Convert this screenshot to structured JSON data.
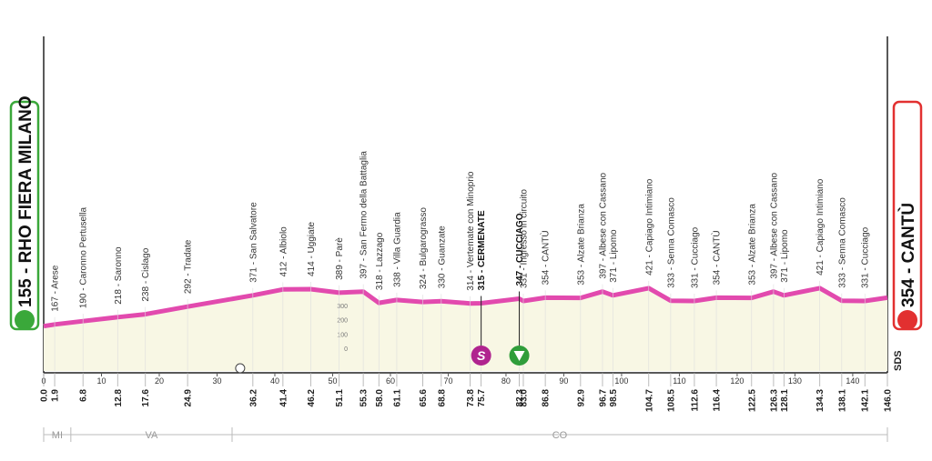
{
  "chart_data": {
    "type": "area",
    "color": "#e24aae",
    "start": {
      "label": "155 - RHO FIERA MILANO",
      "altitude": 155,
      "km": 0,
      "km_label": "0.0"
    },
    "finish": {
      "label": "354 - CANTÙ",
      "altitude": 354,
      "km": 146,
      "km_label": "146.0"
    },
    "places": [
      {
        "label": "167 - Arese",
        "altitude": 167,
        "km": 1.9,
        "km_label": "1.9"
      },
      {
        "label": "190 - Caronno Pertusella",
        "altitude": 190,
        "km": 6.8,
        "km_label": "6.8"
      },
      {
        "label": "218 - Saronno",
        "altitude": 218,
        "km": 12.8,
        "km_label": "12.8"
      },
      {
        "label": "238 - Cislago",
        "altitude": 238,
        "km": 17.6,
        "km_label": "17.6"
      },
      {
        "label": "292 - Tradate",
        "altitude": 292,
        "km": 24.9,
        "km_label": "24.9"
      },
      {
        "label": "371 - San Salvatore",
        "altitude": 371,
        "km": 36.2,
        "km_label": "36.2"
      },
      {
        "label": "412 - Albiolo",
        "altitude": 412,
        "km": 41.4,
        "km_label": "41.4"
      },
      {
        "label": "414 - Uggiate",
        "altitude": 414,
        "km": 46.2,
        "km_label": "46.2"
      },
      {
        "label": "389 - Parè",
        "altitude": 389,
        "km": 51.1,
        "km_label": "51.1"
      },
      {
        "label": "397 - San Fermo della Battaglia",
        "altitude": 397,
        "km": 55.3,
        "km_label": "55.3"
      },
      {
        "label": "318 - Lazzago",
        "altitude": 318,
        "km": 58,
        "km_label": "58.0"
      },
      {
        "label": "338 - Villa Guardia",
        "altitude": 338,
        "km": 61.1,
        "km_label": "61.1"
      },
      {
        "label": "324 - Bulgarograsso",
        "altitude": 324,
        "km": 65.6,
        "km_label": "65.6"
      },
      {
        "label": "330 - Guanzate",
        "altitude": 330,
        "km": 68.8,
        "km_label": "68.8"
      },
      {
        "label": "314 - Vertemate con Minoprio",
        "altitude": 314,
        "km": 73.8,
        "km_label": "73.8"
      },
      {
        "label": "315 - CERMENATE",
        "altitude": 315,
        "km": 75.7,
        "km_label": "75.7",
        "highlight": true
      },
      {
        "label": "347 - CUCCIAGO",
        "altitude": 347,
        "km": 82.3,
        "km_label": "82.3",
        "highlight": true
      },
      {
        "label": "331 - Ingresso in circuito",
        "altitude": 331,
        "km": 83,
        "km_label": "83.0"
      },
      {
        "label": "354 - CANTÙ",
        "altitude": 354,
        "km": 86.8,
        "km_label": "86.8"
      },
      {
        "label": "353 - Alzate Brianza",
        "altitude": 353,
        "km": 92.9,
        "km_label": "92.9"
      },
      {
        "label": "397 - Albese con Cassano",
        "altitude": 397,
        "km": 96.7,
        "km_label": "96.7"
      },
      {
        "label": "371 - Lipomo",
        "altitude": 371,
        "km": 98.5,
        "km_label": "98.5"
      },
      {
        "label": "421 - Capiago Intimiano",
        "altitude": 421,
        "km": 104.7,
        "km_label": "104.7"
      },
      {
        "label": "333 - Senna Comasco",
        "altitude": 333,
        "km": 108.5,
        "km_label": "108.5"
      },
      {
        "label": "331 - Cucciago",
        "altitude": 331,
        "km": 112.6,
        "km_label": "112.6"
      },
      {
        "label": "354 - CANTÙ",
        "altitude": 354,
        "km": 116.4,
        "km_label": "116.4"
      },
      {
        "label": "353 - Alzate Brianza",
        "altitude": 353,
        "km": 122.5,
        "km_label": "122.5"
      },
      {
        "label": "397 - Albese con Cassano",
        "altitude": 397,
        "km": 126.3,
        "km_label": "126.3"
      },
      {
        "label": "371 - Lipomo",
        "altitude": 371,
        "km": 128.1,
        "km_label": "128.1"
      },
      {
        "label": "421 - Capiago Intimiano",
        "altitude": 421,
        "km": 134.3,
        "km_label": "134.3"
      },
      {
        "label": "333 - Senna Comasco",
        "altitude": 333,
        "km": 138.1,
        "km_label": "138.1"
      },
      {
        "label": "331 - Cucciago",
        "altitude": 331,
        "km": 142.1,
        "km_label": "142.1"
      }
    ],
    "xlim": [
      0,
      146
    ],
    "xticks": [
      0,
      10,
      20,
      30,
      40,
      50,
      60,
      70,
      80,
      90,
      100,
      110,
      120,
      130,
      140
    ],
    "yticks": [
      300,
      200,
      100,
      0
    ],
    "sprint": {
      "label": "S",
      "km": 75.7
    },
    "kom_km": 82.3,
    "regions": [
      {
        "name": "MI",
        "from": 0,
        "to": 4.7
      },
      {
        "name": "VA",
        "from": 4.7,
        "to": 32.6
      },
      {
        "name": "CO",
        "from": 32.6,
        "to": 146
      }
    ],
    "logo": "SDS"
  }
}
